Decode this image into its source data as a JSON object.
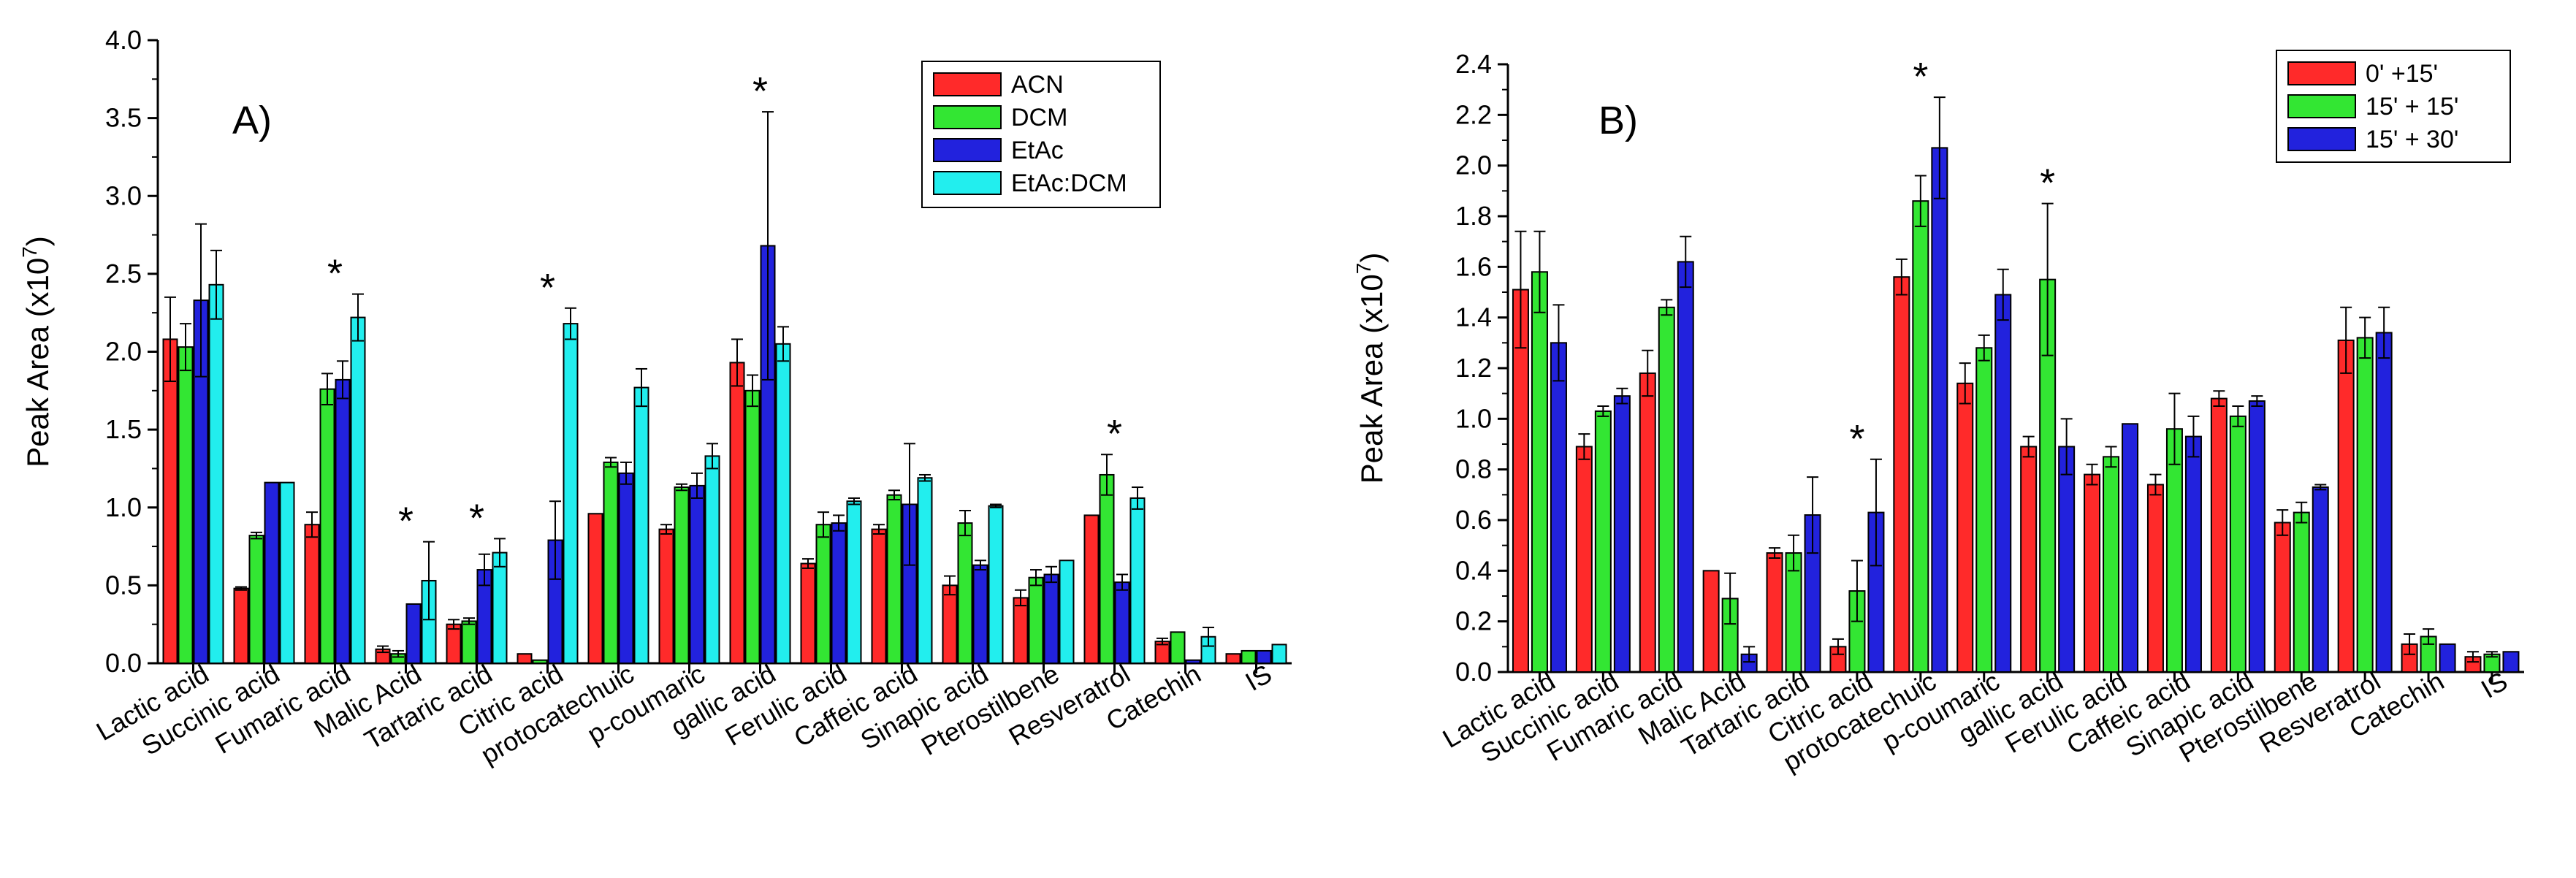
{
  "chart_data": [
    {
      "type": "bar",
      "panel_label": "A)",
      "ylabel_main": "Peak Area (x10",
      "ylabel_exp": "7",
      "ylabel_close": ")",
      "ylim": [
        0,
        4.0
      ],
      "yticks": [
        "0.0",
        "0.5",
        "1.0",
        "1.5",
        "2.0",
        "2.5",
        "3.0",
        "3.5",
        "4.0"
      ],
      "legend_position": "top-right",
      "categories": [
        "Lactic acid",
        "Succinic acid",
        "Fumaric acid",
        "Malic Acid",
        "Tartaric acid",
        "Citric acid",
        "protocatechuic",
        "p-coumaric",
        "gallic acid",
        "Ferulic acid",
        "Caffeic acid",
        "Sinapic acid",
        "Pterostilbene",
        "Resveratrol",
        "Catechin",
        "IS"
      ],
      "series": [
        {
          "name": "ACN",
          "color": "#ff2a2a",
          "values": [
            2.08,
            0.48,
            0.89,
            0.09,
            0.25,
            0.06,
            0.96,
            0.86,
            1.93,
            0.64,
            0.86,
            0.5,
            0.42,
            0.95,
            0.14,
            0.06
          ],
          "errors": [
            0.27,
            0.01,
            0.08,
            0.02,
            0.03,
            0.0,
            0.0,
            0.03,
            0.15,
            0.03,
            0.03,
            0.06,
            0.05,
            0.0,
            0.02,
            0.0
          ]
        },
        {
          "name": "DCM",
          "color": "#33e633",
          "values": [
            2.03,
            0.82,
            1.76,
            0.06,
            0.27,
            0.02,
            1.29,
            1.13,
            1.75,
            0.89,
            1.08,
            0.9,
            0.55,
            1.21,
            0.2,
            0.08
          ],
          "errors": [
            0.15,
            0.02,
            0.1,
            0.02,
            0.02,
            0.0,
            0.03,
            0.02,
            0.1,
            0.08,
            0.03,
            0.08,
            0.05,
            0.13,
            0.0,
            0.0
          ]
        },
        {
          "name": "EtAc",
          "color": "#2222dd",
          "values": [
            2.33,
            1.16,
            1.82,
            0.38,
            0.6,
            0.79,
            1.22,
            1.14,
            2.68,
            0.9,
            1.02,
            0.63,
            0.57,
            0.52,
            0.02,
            0.08
          ],
          "errors": [
            0.49,
            0.0,
            0.12,
            0.0,
            0.1,
            0.25,
            0.07,
            0.08,
            0.86,
            0.05,
            0.39,
            0.03,
            0.05,
            0.05,
            0.0,
            0.0
          ]
        },
        {
          "name": "EtAc:DCM",
          "color": "#22eeee",
          "values": [
            2.43,
            1.16,
            2.22,
            0.53,
            0.71,
            2.18,
            1.77,
            1.33,
            2.05,
            1.04,
            1.19,
            1.01,
            0.66,
            1.06,
            0.17,
            0.12
          ],
          "errors": [
            0.22,
            0.0,
            0.15,
            0.25,
            0.09,
            0.1,
            0.12,
            0.08,
            0.11,
            0.02,
            0.02,
            0.01,
            0.0,
            0.07,
            0.06,
            0.0
          ]
        }
      ],
      "annotations": [
        {
          "category": "Fumaric acid",
          "text": "*"
        },
        {
          "category": "Malic Acid",
          "text": "*"
        },
        {
          "category": "Tartaric acid",
          "text": "*"
        },
        {
          "category": "Citric acid",
          "text": "*"
        },
        {
          "category": "gallic acid",
          "text": "*"
        },
        {
          "category": "Resveratrol",
          "text": "*"
        }
      ]
    },
    {
      "type": "bar",
      "panel_label": "B)",
      "ylabel_main": "Peak Area (x10",
      "ylabel_exp": "7",
      "ylabel_close": ")",
      "ylim": [
        0,
        2.4
      ],
      "yticks": [
        "0.0",
        "0.2",
        "0.4",
        "0.6",
        "0.8",
        "1.0",
        "1.2",
        "1.4",
        "1.6",
        "1.8",
        "2.0",
        "2.2",
        "2.4"
      ],
      "legend_position": "top-right",
      "categories": [
        "Lactic acid",
        "Succinic acid",
        "Fumaric acid",
        "Malic Acid",
        "Tartaric acid",
        "Citric acid",
        "protocatechuic",
        "p-coumaric",
        "gallic acid",
        "Ferulic acid",
        "Caffeic acid",
        "Sinapic acid",
        "Pterostilbene",
        "Resveratrol",
        "Catechin",
        "IS"
      ],
      "series": [
        {
          "name": "0' +15'",
          "color": "#ff2a2a",
          "values": [
            1.51,
            0.89,
            1.18,
            0.4,
            0.47,
            0.1,
            1.56,
            1.14,
            0.89,
            0.78,
            0.74,
            1.08,
            0.59,
            1.31,
            0.11,
            0.06
          ],
          "errors": [
            0.23,
            0.05,
            0.09,
            0.0,
            0.02,
            0.03,
            0.07,
            0.08,
            0.04,
            0.04,
            0.04,
            0.03,
            0.05,
            0.13,
            0.04,
            0.02
          ]
        },
        {
          "name": "15' + 15'",
          "color": "#33e633",
          "values": [
            1.58,
            1.03,
            1.44,
            0.29,
            0.47,
            0.32,
            1.86,
            1.28,
            1.55,
            0.85,
            0.96,
            1.01,
            0.63,
            1.32,
            0.14,
            0.07
          ],
          "errors": [
            0.16,
            0.02,
            0.03,
            0.1,
            0.07,
            0.12,
            0.1,
            0.05,
            0.3,
            0.04,
            0.14,
            0.04,
            0.04,
            0.08,
            0.03,
            0.01
          ]
        },
        {
          "name": "15' + 30'",
          "color": "#2222dd",
          "values": [
            1.3,
            1.09,
            1.62,
            0.07,
            0.62,
            0.63,
            2.07,
            1.49,
            0.89,
            0.98,
            0.93,
            1.07,
            0.73,
            1.34,
            0.11,
            0.08
          ],
          "errors": [
            0.15,
            0.03,
            0.1,
            0.03,
            0.15,
            0.21,
            0.2,
            0.1,
            0.11,
            0.0,
            0.08,
            0.02,
            0.01,
            0.1,
            0.0,
            0.0
          ]
        }
      ],
      "annotations": [
        {
          "category": "Citric acid",
          "text": "*"
        },
        {
          "category": "protocatechuic",
          "text": "*"
        },
        {
          "category": "gallic acid",
          "text": "*"
        }
      ]
    }
  ]
}
